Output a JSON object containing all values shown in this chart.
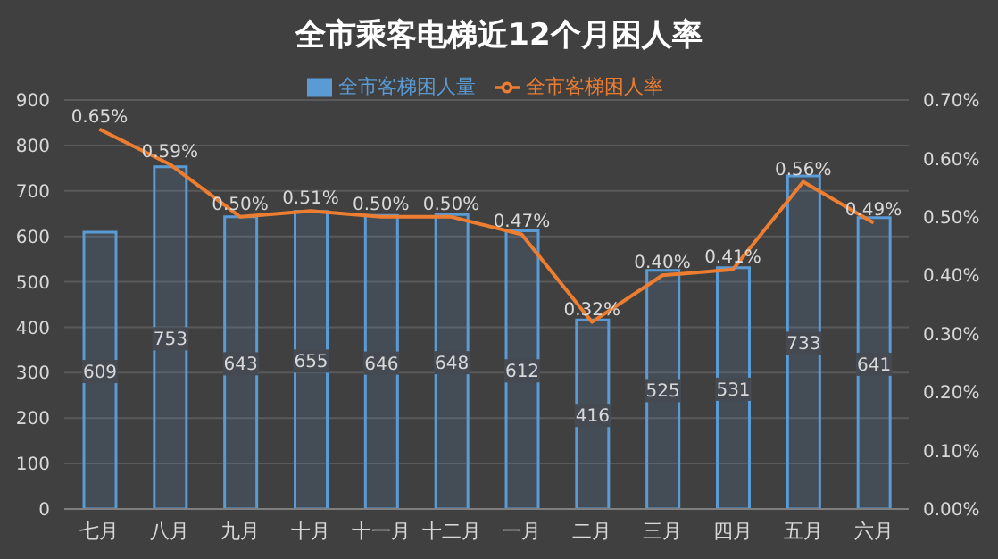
{
  "chart_data": {
    "type": "bar",
    "title": "全市乘客电梯近12个月困人率",
    "categories": [
      "七月",
      "八月",
      "九月",
      "十月",
      "十一月",
      "十二月",
      "一月",
      "二月",
      "三月",
      "四月",
      "五月",
      "六月"
    ],
    "series": [
      {
        "name": "全市客梯困人量",
        "color": "#5b9bd5",
        "values": [
          609,
          753,
          643,
          655,
          646,
          648,
          612,
          416,
          525,
          531,
          733,
          641
        ],
        "value_labels": [
          "609",
          "753",
          "643",
          "655",
          "646",
          "648",
          "612",
          "416",
          "525",
          "531",
          "733",
          "641"
        ]
      },
      {
        "name": "全市客梯困人率",
        "type": "line",
        "axis": "y2",
        "color": "#ed7d31",
        "values": [
          0.65,
          0.59,
          0.5,
          0.51,
          0.5,
          0.5,
          0.47,
          0.32,
          0.4,
          0.41,
          0.56,
          0.49
        ],
        "value_labels": [
          "0.65%",
          "0.59%",
          "0.50%",
          "0.51%",
          "0.50%",
          "0.50%",
          "0.47%",
          "0.32%",
          "0.40%",
          "0.41%",
          "0.56%",
          "0.49%"
        ]
      }
    ],
    "ylim": [
      0,
      900
    ],
    "yticks": [
      0,
      100,
      200,
      300,
      400,
      500,
      600,
      700,
      800,
      900
    ],
    "y2lim": [
      0,
      0.7
    ],
    "y2ticks": [
      {
        "value": 0,
        "label": "0.00%"
      },
      {
        "value": 0.1,
        "label": "0.10%"
      },
      {
        "value": 0.2,
        "label": "0.20%"
      },
      {
        "value": 0.3,
        "label": "0.30%"
      },
      {
        "value": 0.4,
        "label": "0.40%"
      },
      {
        "value": 0.5,
        "label": "0.50%"
      },
      {
        "value": 0.6,
        "label": "0.60%"
      },
      {
        "value": 0.7,
        "label": "0.70%"
      }
    ],
    "grid": "y",
    "legend": "top",
    "marker": "none",
    "line_style": "solid"
  }
}
